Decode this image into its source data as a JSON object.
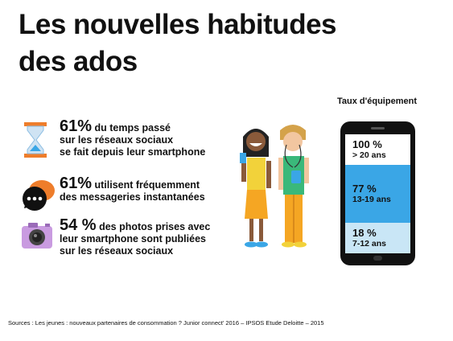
{
  "title_line1": "Les nouvelles habitudes",
  "title_line2": "des ados",
  "stats": [
    {
      "big": "61%",
      "line1": " du temps passé",
      "line2": "sur les réseaux sociaux",
      "line3": "se fait depuis leur smartphone",
      "icon": "hourglass-icon"
    },
    {
      "big": "61%",
      "line1": " utilisent fréquemment",
      "line2": "des messageries instantanées",
      "line3": "",
      "icon": "chat-bubble-icon"
    },
    {
      "big": "54 %",
      "line1": " des photos prises avec",
      "line2": "leur smartphone sont publiées",
      "line3": "sur les réseaux sociaux",
      "icon": "camera-icon"
    }
  ],
  "phone": {
    "caption": "Taux d'équipement",
    "bands": [
      {
        "pct": "100 %",
        "age": "> 20 ans",
        "value": 100,
        "color": "#ffffff"
      },
      {
        "pct": "77 %",
        "age": "13-19 ans",
        "value": 77,
        "color": "#3aa6e6"
      },
      {
        "pct": "18 %",
        "age": "7-12 ans",
        "value": 18,
        "color": "#c9e6f6"
      }
    ]
  },
  "source": "Sources :  Les jeunes : nouveaux partenaires de consommation ? Junior connect' 2016  – IPSOS Etude Deloitte – 2015",
  "colors": {
    "accent": "#ee7d2b",
    "blue": "#3aa6e6",
    "light_blue": "#c9e6f6",
    "camera": "#c99be0"
  }
}
